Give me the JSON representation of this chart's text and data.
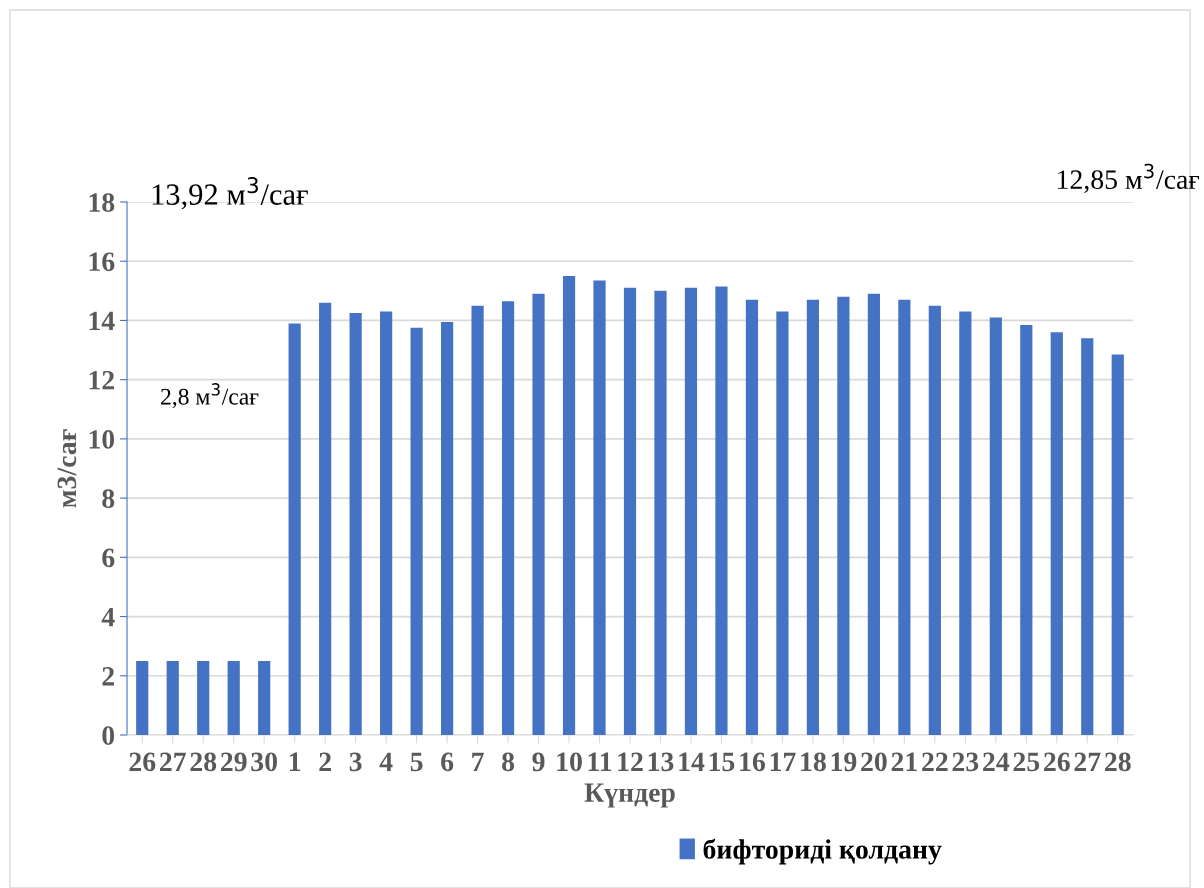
{
  "chart_data": {
    "type": "bar",
    "xlabel": "Күндер",
    "ylabel": "м3/сағ",
    "categories": [
      "26",
      "27",
      "28",
      "29",
      "30",
      "1",
      "2",
      "3",
      "4",
      "5",
      "6",
      "7",
      "8",
      "9",
      "10",
      "11",
      "12",
      "13",
      "14",
      "15",
      "16",
      "17",
      "18",
      "19",
      "20",
      "21",
      "22",
      "23",
      "24",
      "25",
      "26",
      "27",
      "28"
    ],
    "series": [
      {
        "name": "бифториді қолдану",
        "color": "#4472c4",
        "values": [
          2.5,
          2.5,
          2.5,
          2.5,
          2.5,
          13.9,
          14.6,
          14.25,
          14.3,
          13.75,
          13.95,
          14.5,
          14.65,
          14.9,
          15.5,
          15.35,
          15.1,
          15.0,
          15.1,
          15.15,
          14.7,
          14.3,
          14.7,
          14.8,
          14.9,
          14.7,
          14.5,
          14.3,
          14.1,
          13.85,
          13.6,
          13.4,
          12.85
        ]
      }
    ],
    "ylim": [
      0,
      18
    ],
    "yticks": [
      0,
      2,
      4,
      6,
      8,
      10,
      12,
      14,
      16,
      18
    ],
    "grid": "y",
    "legend": "bottom",
    "annotations": [
      "13,92 м$^{3}$/сағ",
      "2,8 м$^{3}$/сағ",
      "12,85 м$^{3}$/сағ"
    ]
  }
}
